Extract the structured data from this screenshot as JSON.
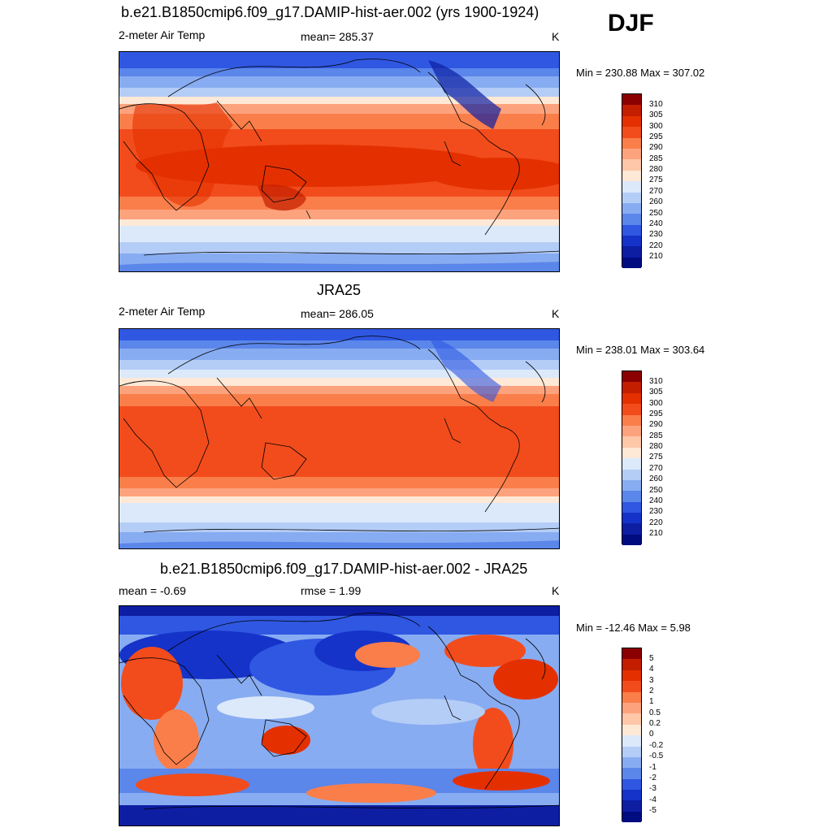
{
  "season": "DJF",
  "panels": [
    {
      "title": "b.e21.B1850cmip6.f09_g17.DAMIP-hist-aer.002 (yrs 1900-1924)",
      "left_label": "2-meter Air Temp",
      "center_label": "mean= 285.37",
      "units": "K",
      "minmax": "Min = 230.88 Max = 307.02",
      "type": "absolute"
    },
    {
      "title": "JRA25",
      "left_label": "2-meter Air Temp",
      "center_label": "mean= 286.05",
      "units": "K",
      "minmax": "Min = 238.01 Max = 303.64",
      "type": "absolute"
    },
    {
      "title": "b.e21.B1850cmip6.f09_g17.DAMIP-hist-aer.002 - JRA25",
      "left_label": "mean =  -0.69",
      "center_label": "rmse =   1.99",
      "units": "K",
      "minmax": "Min = -12.46 Max =   5.98",
      "type": "difference"
    }
  ],
  "colorbar_abs": {
    "labels": [
      "310",
      "305",
      "300",
      "295",
      "290",
      "285",
      "280",
      "275",
      "270",
      "260",
      "250",
      "240",
      "230",
      "220",
      "210"
    ],
    "colors": [
      "#8b0000",
      "#c31e00",
      "#e43000",
      "#f24c1c",
      "#fa7e4a",
      "#fca37d",
      "#fdc7a8",
      "#fee8d6",
      "#dce9fb",
      "#b4cdf7",
      "#88acf1",
      "#5b86ea",
      "#2f57e2",
      "#1533c8",
      "#0d1ea3",
      "#000c80"
    ]
  },
  "colorbar_diff": {
    "labels": [
      "5",
      "4",
      "3",
      "2",
      "1",
      "0.5",
      "0.2",
      "0",
      "-0.2",
      "-0.5",
      "-1",
      "-2",
      "-3",
      "-4",
      "-5"
    ],
    "colors": [
      "#8b0000",
      "#c31e00",
      "#e43000",
      "#f24c1c",
      "#fa7e4a",
      "#fca37d",
      "#fdc7a8",
      "#fee8d6",
      "#dce9fb",
      "#b4cdf7",
      "#88acf1",
      "#5b86ea",
      "#2f57e2",
      "#1533c8",
      "#0d1ea3",
      "#000c80"
    ]
  }
}
